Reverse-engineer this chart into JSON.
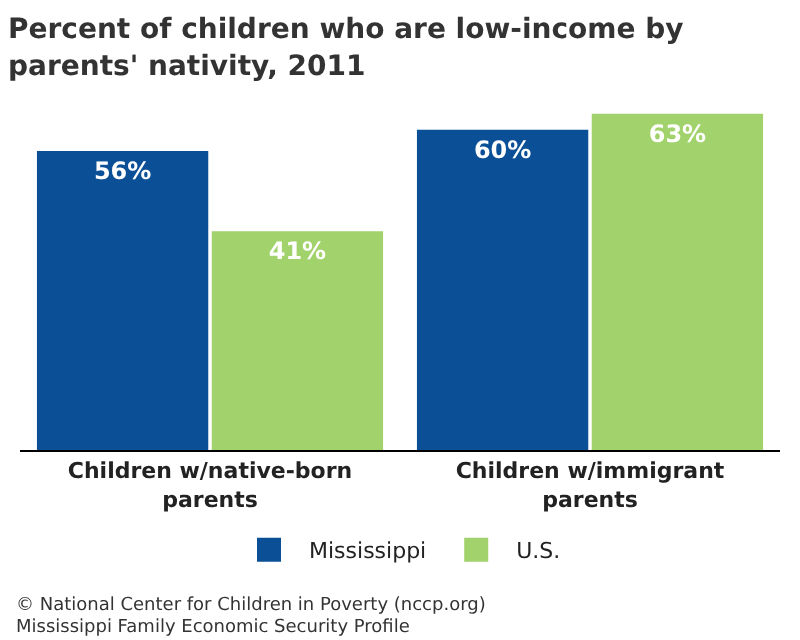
{
  "chart_data": {
    "type": "bar",
    "title": "Percent of children who are low-income by parents' nativity, 2011",
    "categories": [
      "Children w/native-born parents",
      "Children w/immigrant parents"
    ],
    "series": [
      {
        "name": "Mississippi",
        "color": "#0b4f96",
        "values": [
          56,
          60
        ],
        "value_labels": [
          "56%",
          "60%"
        ]
      },
      {
        "name": "U.S.",
        "color": "#a2d26b",
        "values": [
          41,
          63
        ],
        "value_labels": [
          "41%",
          "63%"
        ]
      }
    ],
    "legend": "bottom",
    "grid": false,
    "annotations": [
      "© National Center for Children in Poverty (nccp.org)",
      "Mississippi Family Economic Security Profile"
    ]
  }
}
